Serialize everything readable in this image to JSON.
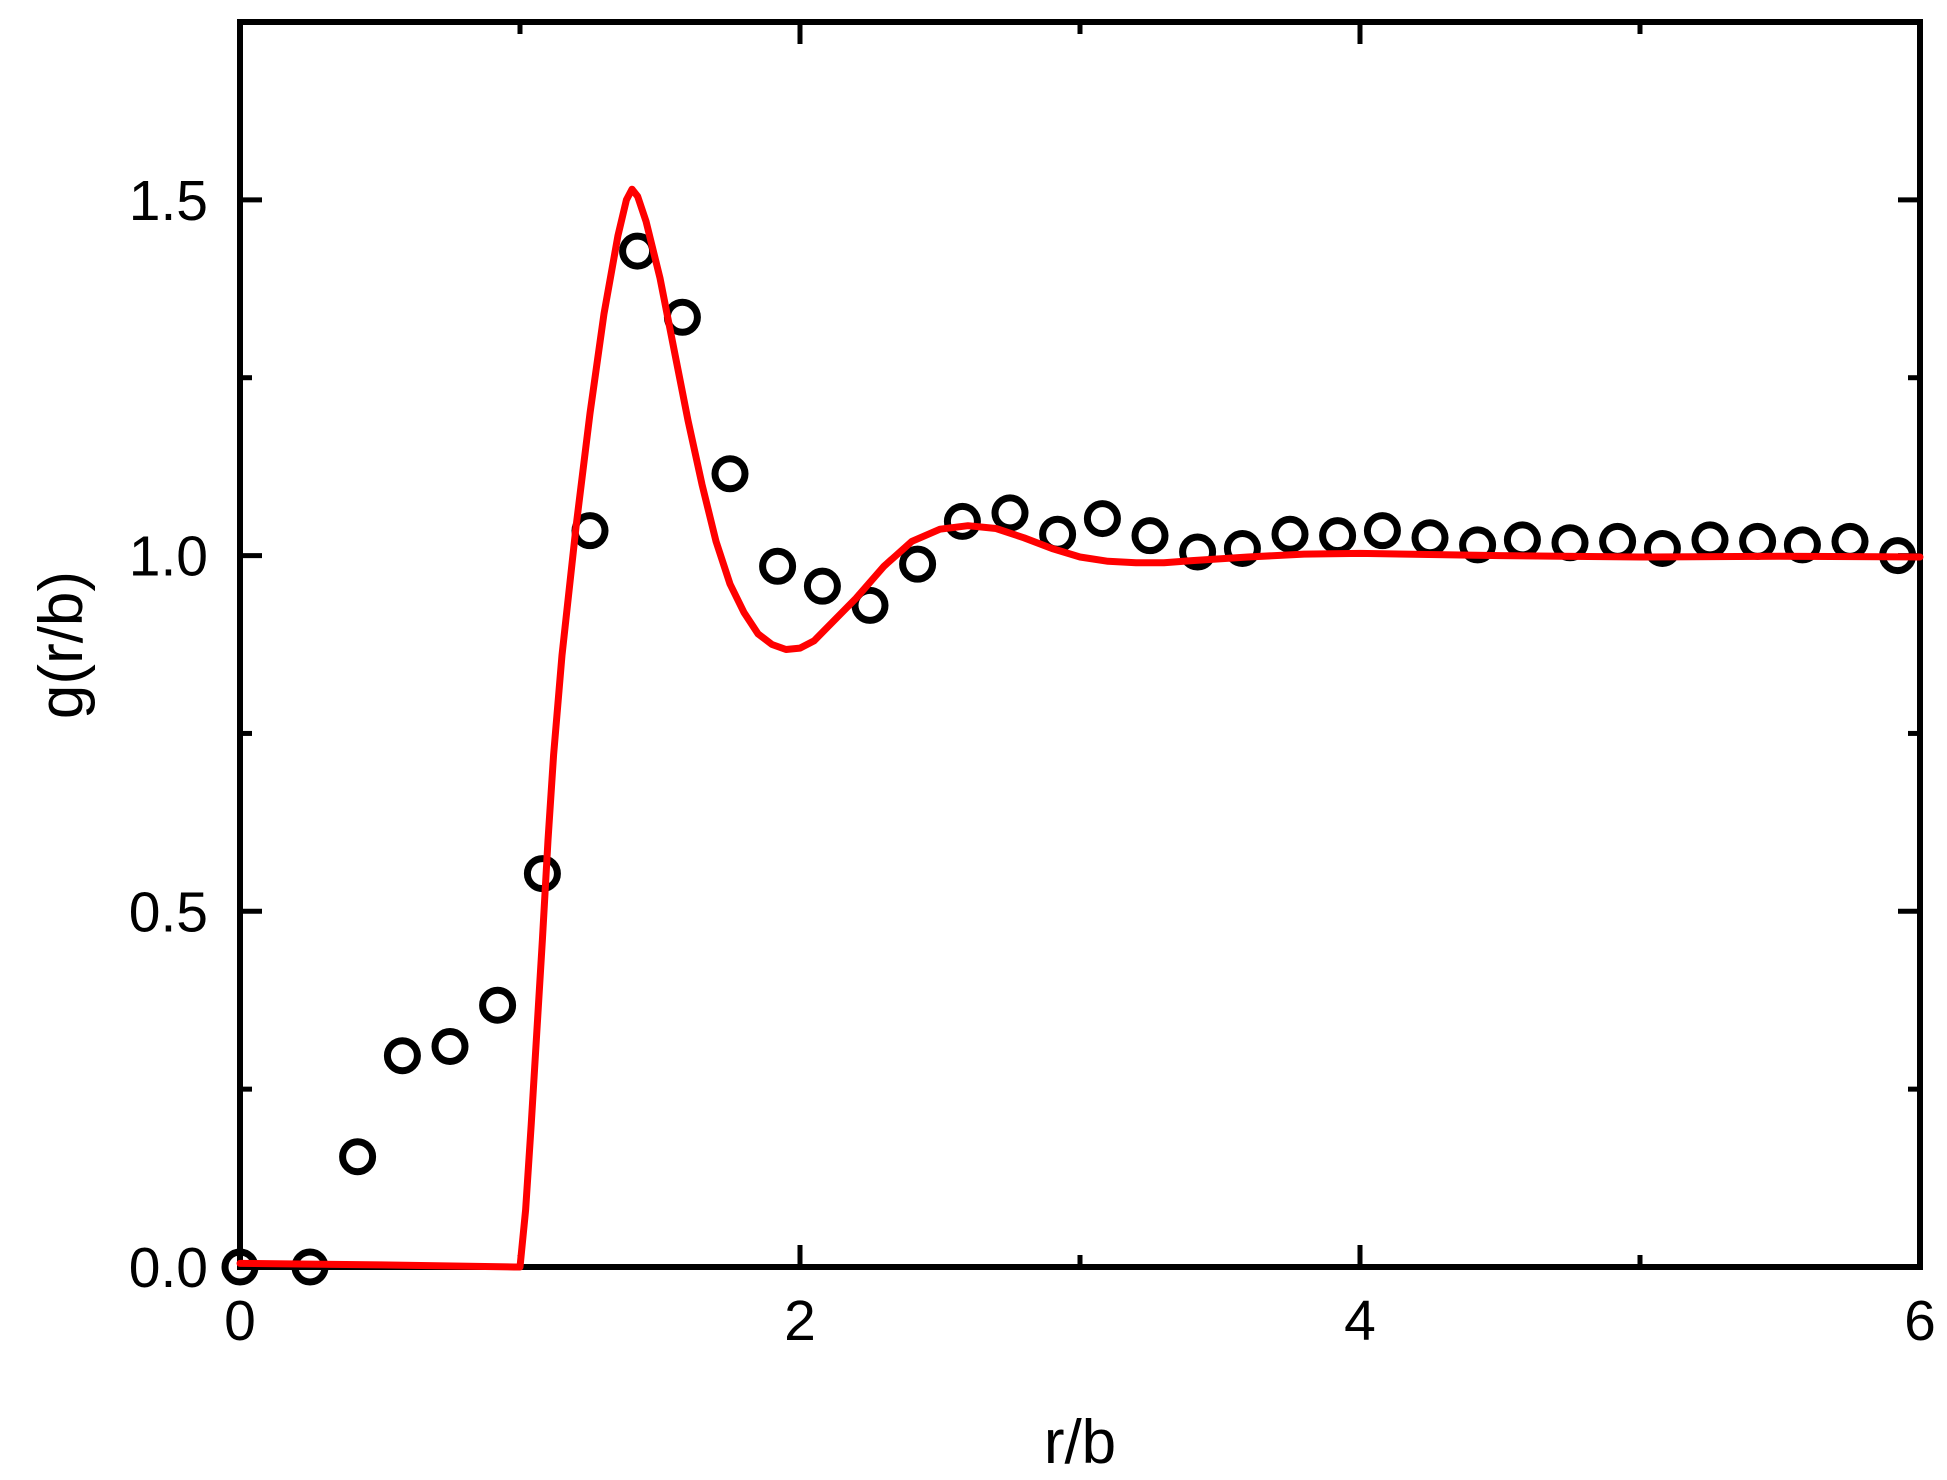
{
  "chart_data": {
    "type": "scatter",
    "xlabel": "r/b",
    "ylabel": "g(r/b)",
    "xlim": [
      0,
      6
    ],
    "ylim": [
      0,
      1.75
    ],
    "x_ticks": [
      0,
      2,
      4,
      6
    ],
    "x_tick_labels": [
      "0",
      "2",
      "4",
      "6"
    ],
    "x_minor_ticks": [
      1,
      3,
      5
    ],
    "y_ticks": [
      0,
      0.5,
      1.0,
      1.5
    ],
    "y_tick_labels": [
      "0.0",
      "0.5",
      "1.0",
      "1.5"
    ],
    "y_minor_ticks": [
      0.25,
      0.75,
      1.25
    ],
    "grid": false,
    "legend": "none",
    "series": [
      {
        "style": "open-circle",
        "color": "#000000",
        "points": [
          [
            0.0,
            0.0
          ],
          [
            0.25,
            0.0
          ],
          [
            0.42,
            0.155
          ],
          [
            0.58,
            0.297
          ],
          [
            0.75,
            0.31
          ],
          [
            0.92,
            0.368
          ],
          [
            1.08,
            0.553
          ],
          [
            1.25,
            1.035
          ],
          [
            1.42,
            1.428
          ],
          [
            1.58,
            1.335
          ],
          [
            1.75,
            1.115
          ],
          [
            1.92,
            0.985
          ],
          [
            2.08,
            0.957
          ],
          [
            2.25,
            0.93
          ],
          [
            2.42,
            0.988
          ],
          [
            2.58,
            1.048
          ],
          [
            2.75,
            1.06
          ],
          [
            2.92,
            1.03
          ],
          [
            3.08,
            1.052
          ],
          [
            3.25,
            1.028
          ],
          [
            3.42,
            1.005
          ],
          [
            3.58,
            1.01
          ],
          [
            3.75,
            1.03
          ],
          [
            3.92,
            1.028
          ],
          [
            4.08,
            1.035
          ],
          [
            4.25,
            1.025
          ],
          [
            4.42,
            1.015
          ],
          [
            4.58,
            1.022
          ],
          [
            4.75,
            1.018
          ],
          [
            4.92,
            1.02
          ],
          [
            5.08,
            1.01
          ],
          [
            5.25,
            1.022
          ],
          [
            5.42,
            1.02
          ],
          [
            5.58,
            1.015
          ],
          [
            5.75,
            1.02
          ],
          [
            5.92,
            1.0
          ]
        ]
      },
      {
        "style": "line",
        "color": "#ff0000",
        "points": [
          [
            0.0,
            0.005
          ],
          [
            0.5,
            0.003
          ],
          [
            0.98,
            0.0
          ],
          [
            1.0,
            0.0
          ],
          [
            1.02,
            0.08
          ],
          [
            1.04,
            0.2
          ],
          [
            1.06,
            0.33
          ],
          [
            1.08,
            0.46
          ],
          [
            1.1,
            0.6
          ],
          [
            1.12,
            0.72
          ],
          [
            1.15,
            0.86
          ],
          [
            1.2,
            1.04
          ],
          [
            1.25,
            1.2
          ],
          [
            1.3,
            1.34
          ],
          [
            1.35,
            1.45
          ],
          [
            1.38,
            1.5
          ],
          [
            1.4,
            1.515
          ],
          [
            1.42,
            1.505
          ],
          [
            1.45,
            1.47
          ],
          [
            1.5,
            1.39
          ],
          [
            1.55,
            1.29
          ],
          [
            1.6,
            1.19
          ],
          [
            1.65,
            1.1
          ],
          [
            1.7,
            1.02
          ],
          [
            1.75,
            0.96
          ],
          [
            1.8,
            0.92
          ],
          [
            1.85,
            0.89
          ],
          [
            1.9,
            0.875
          ],
          [
            1.95,
            0.868
          ],
          [
            2.0,
            0.87
          ],
          [
            2.05,
            0.88
          ],
          [
            2.1,
            0.9
          ],
          [
            2.2,
            0.94
          ],
          [
            2.3,
            0.985
          ],
          [
            2.4,
            1.02
          ],
          [
            2.5,
            1.037
          ],
          [
            2.6,
            1.042
          ],
          [
            2.7,
            1.038
          ],
          [
            2.8,
            1.025
          ],
          [
            2.9,
            1.01
          ],
          [
            3.0,
            0.998
          ],
          [
            3.1,
            0.992
          ],
          [
            3.2,
            0.99
          ],
          [
            3.3,
            0.99
          ],
          [
            3.4,
            0.993
          ],
          [
            3.6,
            0.998
          ],
          [
            3.8,
            1.002
          ],
          [
            4.0,
            1.003
          ],
          [
            4.5,
            1.0
          ],
          [
            5.0,
            0.998
          ],
          [
            5.5,
            0.999
          ],
          [
            6.0,
            0.998
          ]
        ]
      }
    ]
  }
}
